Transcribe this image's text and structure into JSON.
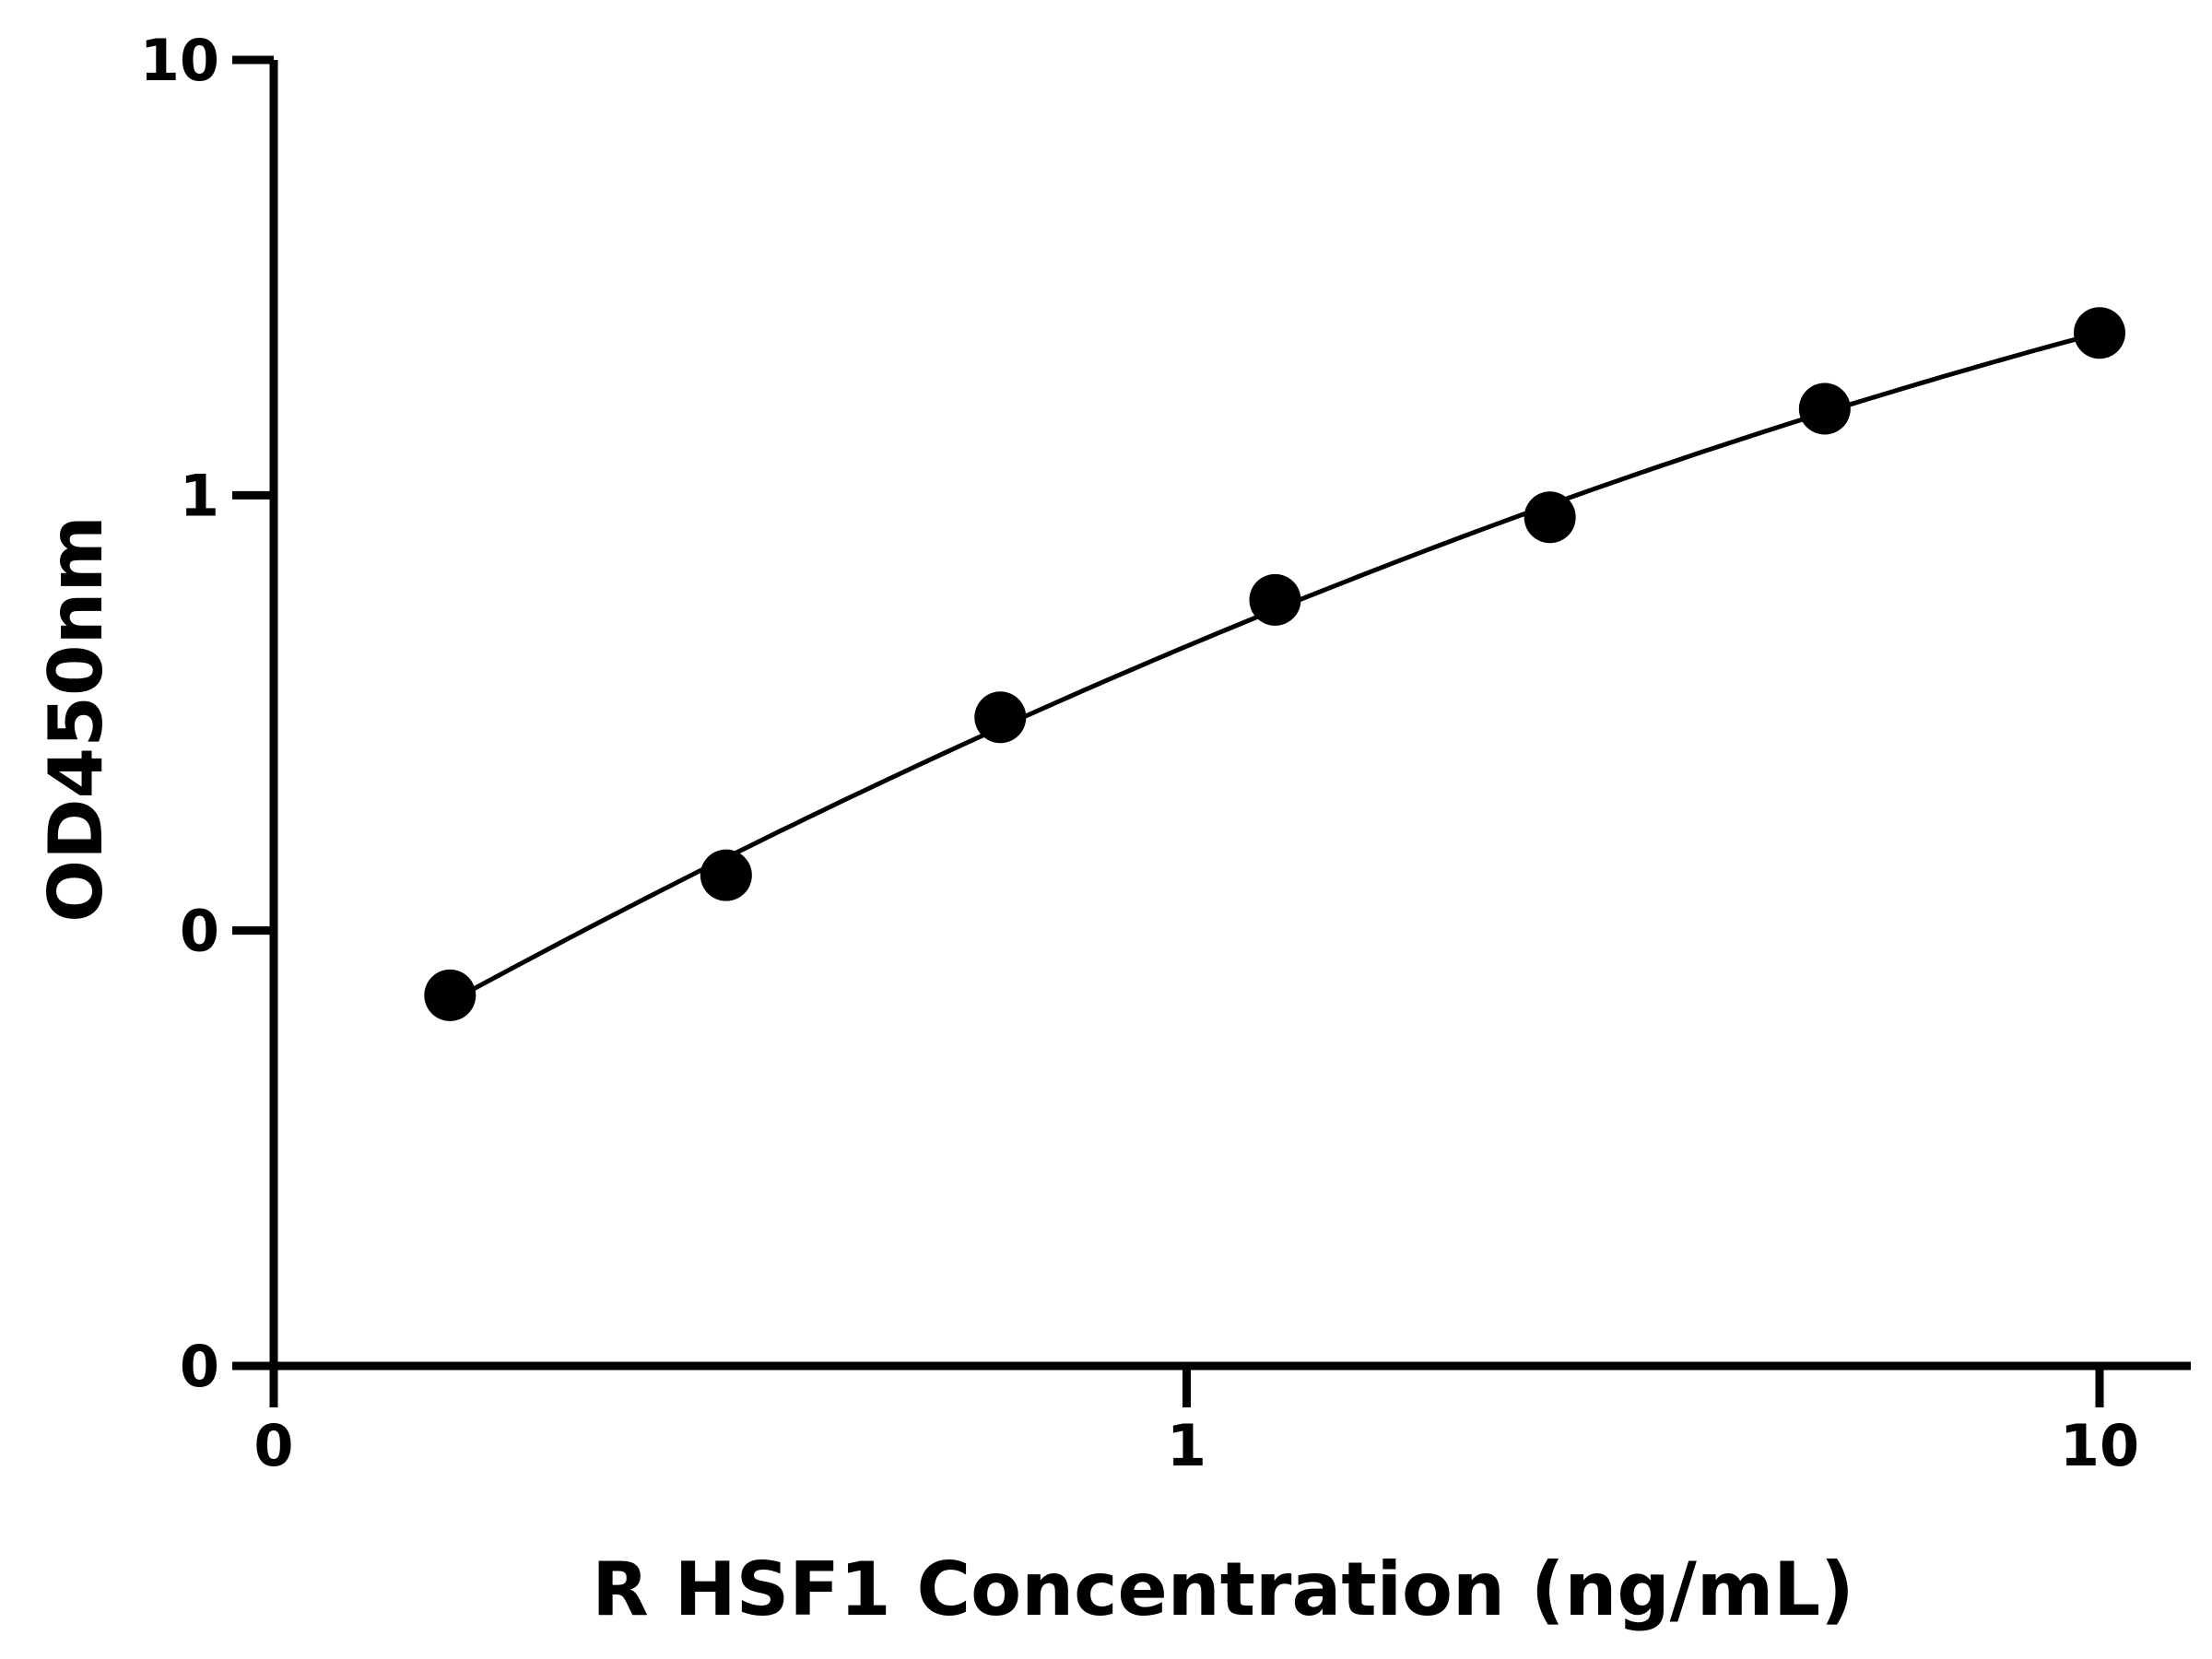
{
  "chart_data": {
    "type": "scatter",
    "title": "",
    "xlabel": "R HSF1 Concentration (ng/mL)",
    "ylabel": "OD450nm",
    "x_scale": "log",
    "y_scale": "log",
    "xlim": [
      0.1,
      10
    ],
    "ylim": [
      0.01,
      10
    ],
    "x_ticks": [
      {
        "value": 0.1,
        "label": "0"
      },
      {
        "value": 1,
        "label": "1"
      },
      {
        "value": 10,
        "label": "10"
      }
    ],
    "y_ticks": [
      {
        "value": 0.01,
        "label": "0"
      },
      {
        "value": 0.1,
        "label": "0"
      },
      {
        "value": 1,
        "label": "1"
      },
      {
        "value": 10,
        "label": "10"
      }
    ],
    "series": [
      {
        "points": [
          {
            "x": 0.156,
            "y": 0.071
          },
          {
            "x": 0.313,
            "y": 0.134
          },
          {
            "x": 0.625,
            "y": 0.309
          },
          {
            "x": 1.25,
            "y": 0.575
          },
          {
            "x": 2.5,
            "y": 0.89
          },
          {
            "x": 5,
            "y": 1.58
          },
          {
            "x": 10,
            "y": 2.36
          }
        ]
      }
    ],
    "fit_curve": true,
    "grid": false,
    "legend": "none",
    "colors": {
      "axis": "#000000",
      "marker": "#000000",
      "curve": "#000000"
    }
  }
}
